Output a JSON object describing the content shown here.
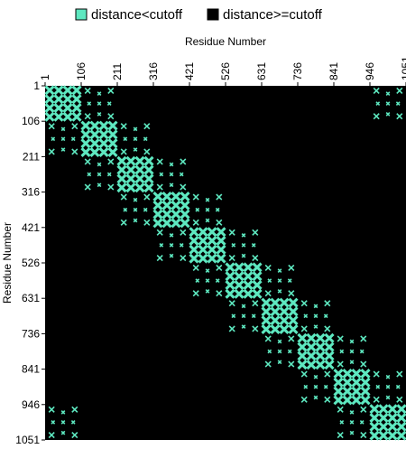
{
  "chart_data": {
    "type": "heatmap",
    "title": "",
    "xlabel": "Residue Number",
    "ylabel": "Residue Number",
    "xlim": [
      1,
      1051
    ],
    "ylim": [
      1,
      1051
    ],
    "x_ticks": [
      "1",
      "106",
      "211",
      "316",
      "421",
      "526",
      "631",
      "736",
      "841",
      "946",
      "1051"
    ],
    "y_ticks": [
      "1",
      "106",
      "211",
      "316",
      "421",
      "526",
      "631",
      "736",
      "841",
      "946",
      "1051"
    ],
    "x_axis_position": "top",
    "y_axis_inverted": true,
    "legend": {
      "placement": "top",
      "entries": [
        {
          "label": "distance<cutoff",
          "color": "#5ee8c0"
        },
        {
          "label": "distance>=cutoff",
          "color": "#000000"
        }
      ]
    },
    "colors": {
      "contact": "#5ee8c0",
      "background": "#000000"
    },
    "diagonal_blocks": [
      {
        "start": 1,
        "end": 106
      },
      {
        "start": 106,
        "end": 211
      },
      {
        "start": 211,
        "end": 316
      },
      {
        "start": 316,
        "end": 421
      },
      {
        "start": 421,
        "end": 526
      },
      {
        "start": 526,
        "end": 631
      },
      {
        "start": 631,
        "end": 736
      },
      {
        "start": 736,
        "end": 841
      },
      {
        "start": 841,
        "end": 946
      },
      {
        "start": 946,
        "end": 1051
      }
    ],
    "off_diagonal_contact_regions": [
      {
        "x": [
          106,
          211
        ],
        "y": [
          1,
          106
        ]
      },
      {
        "x": [
          1,
          106
        ],
        "y": [
          106,
          211
        ]
      },
      {
        "x": [
          211,
          316
        ],
        "y": [
          106,
          211
        ]
      },
      {
        "x": [
          106,
          211
        ],
        "y": [
          211,
          316
        ]
      },
      {
        "x": [
          316,
          421
        ],
        "y": [
          211,
          316
        ]
      },
      {
        "x": [
          211,
          316
        ],
        "y": [
          316,
          421
        ]
      },
      {
        "x": [
          421,
          526
        ],
        "y": [
          316,
          421
        ]
      },
      {
        "x": [
          316,
          421
        ],
        "y": [
          421,
          526
        ]
      },
      {
        "x": [
          526,
          631
        ],
        "y": [
          421,
          526
        ]
      },
      {
        "x": [
          421,
          526
        ],
        "y": [
          526,
          631
        ]
      },
      {
        "x": [
          631,
          736
        ],
        "y": [
          526,
          631
        ]
      },
      {
        "x": [
          526,
          631
        ],
        "y": [
          631,
          736
        ]
      },
      {
        "x": [
          736,
          841
        ],
        "y": [
          631,
          736
        ]
      },
      {
        "x": [
          631,
          736
        ],
        "y": [
          736,
          841
        ]
      },
      {
        "x": [
          841,
          946
        ],
        "y": [
          736,
          841
        ]
      },
      {
        "x": [
          736,
          841
        ],
        "y": [
          841,
          946
        ]
      },
      {
        "x": [
          946,
          1051
        ],
        "y": [
          841,
          946
        ]
      },
      {
        "x": [
          841,
          946
        ],
        "y": [
          946,
          1051
        ]
      },
      {
        "x": [
          946,
          1051
        ],
        "y": [
          1,
          106
        ]
      },
      {
        "x": [
          1,
          106
        ],
        "y": [
          946,
          1051
        ]
      }
    ]
  }
}
